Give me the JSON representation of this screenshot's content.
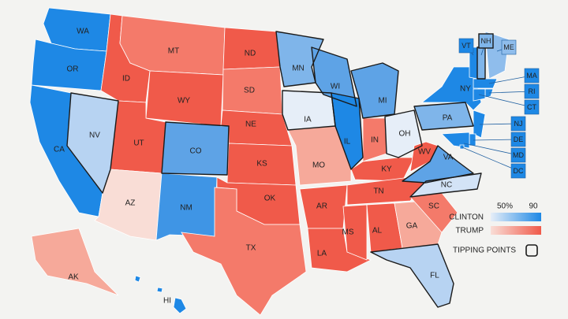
{
  "map": {
    "states": [
      {
        "label": "WA",
        "color": "#1e88e5",
        "tipping_point": false
      },
      {
        "label": "OR",
        "color": "#1e88e5",
        "tipping_point": false
      },
      {
        "label": "CA",
        "color": "#1e88e5",
        "tipping_point": false
      },
      {
        "label": "NV",
        "color": "#b7d3f2",
        "tipping_point": true
      },
      {
        "label": "ID",
        "color": "#f05a4a",
        "tipping_point": false
      },
      {
        "label": "MT",
        "color": "#f47a6a",
        "tipping_point": false
      },
      {
        "label": "WY",
        "color": "#f05a4a",
        "tipping_point": false
      },
      {
        "label": "UT",
        "color": "#f05a4a",
        "tipping_point": false
      },
      {
        "label": "AZ",
        "color": "#f9ddd6",
        "tipping_point": false
      },
      {
        "label": "CO",
        "color": "#5ea3e6",
        "tipping_point": true
      },
      {
        "label": "NM",
        "color": "#3f95e5",
        "tipping_point": false
      },
      {
        "label": "ND",
        "color": "#f05a4a",
        "tipping_point": false
      },
      {
        "label": "SD",
        "color": "#f47a6a",
        "tipping_point": false
      },
      {
        "label": "NE",
        "color": "#f05a4a",
        "tipping_point": false
      },
      {
        "label": "KS",
        "color": "#f05a4a",
        "tipping_point": false
      },
      {
        "label": "OK",
        "color": "#f05a4a",
        "tipping_point": false
      },
      {
        "label": "TX",
        "color": "#f47a6a",
        "tipping_point": false
      },
      {
        "label": "MN",
        "color": "#7fb5ea",
        "tipping_point": true
      },
      {
        "label": "IA",
        "color": "#e6eef8",
        "tipping_point": true
      },
      {
        "label": "MO",
        "color": "#f6a99a",
        "tipping_point": false
      },
      {
        "label": "AR",
        "color": "#f05a4a",
        "tipping_point": false
      },
      {
        "label": "LA",
        "color": "#f05a4a",
        "tipping_point": false
      },
      {
        "label": "WI",
        "color": "#5ea3e6",
        "tipping_point": true
      },
      {
        "label": "IL",
        "color": "#1e88e5",
        "tipping_point": true
      },
      {
        "label": "MI",
        "color": "#5ea3e6",
        "tipping_point": true
      },
      {
        "label": "IN",
        "color": "#f47a6a",
        "tipping_point": false
      },
      {
        "label": "OH",
        "color": "#e6eef8",
        "tipping_point": true
      },
      {
        "label": "KY",
        "color": "#f05a4a",
        "tipping_point": false
      },
      {
        "label": "TN",
        "color": "#f05a4a",
        "tipping_point": false
      },
      {
        "label": "MS",
        "color": "#f05a4a",
        "tipping_point": false
      },
      {
        "label": "AL",
        "color": "#f05a4a",
        "tipping_point": false
      },
      {
        "label": "GA",
        "color": "#f6a99a",
        "tipping_point": false
      },
      {
        "label": "FL",
        "color": "#b7d3f2",
        "tipping_point": true
      },
      {
        "label": "SC",
        "color": "#f47a6a",
        "tipping_point": false
      },
      {
        "label": "NC",
        "color": "#d3e3f6",
        "tipping_point": true
      },
      {
        "label": "VA",
        "color": "#5ea3e6",
        "tipping_point": true
      },
      {
        "label": "WV",
        "color": "#f05a4a",
        "tipping_point": false
      },
      {
        "label": "PA",
        "color": "#7fb5ea",
        "tipping_point": true
      },
      {
        "label": "NY",
        "color": "#1e88e5",
        "tipping_point": false
      },
      {
        "label": "VT",
        "color": "#1e88e5",
        "tipping_point": false
      },
      {
        "label": "NH",
        "color": "#7fb5ea",
        "tipping_point": true
      },
      {
        "label": "ME",
        "color": "#8fbdec",
        "tipping_point": false
      },
      {
        "label": "MA",
        "color": "#1e88e5",
        "tipping_point": false
      },
      {
        "label": "RI",
        "color": "#1e88e5",
        "tipping_point": false
      },
      {
        "label": "CT",
        "color": "#1e88e5",
        "tipping_point": false
      },
      {
        "label": "NJ",
        "color": "#1e88e5",
        "tipping_point": false
      },
      {
        "label": "DE",
        "color": "#1e88e5",
        "tipping_point": false
      },
      {
        "label": "MD",
        "color": "#1e88e5",
        "tipping_point": false
      },
      {
        "label": "DC",
        "color": "#1e88e5",
        "tipping_point": false
      },
      {
        "label": "AK",
        "color": "#f6a99a",
        "tipping_point": false
      },
      {
        "label": "HI",
        "color": "#1e88e5",
        "tipping_point": false
      }
    ],
    "legend": {
      "clinton": "CLINTON",
      "trump": "TRUMP",
      "low": "50%",
      "high": "90",
      "clinton_colors": [
        "#e6eef8",
        "#1e88e5"
      ],
      "trump_colors": [
        "#f9ddd6",
        "#f05a4a"
      ],
      "tipping_points": "TIPPING POINTS"
    }
  }
}
